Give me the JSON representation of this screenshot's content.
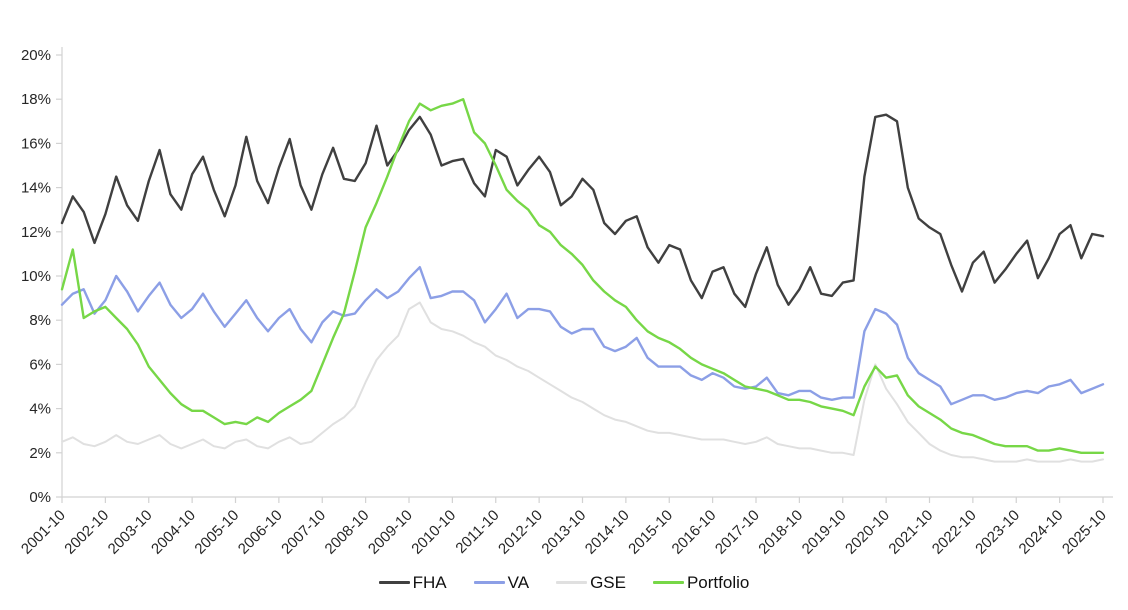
{
  "chart_data": {
    "type": "line",
    "title": "",
    "xlabel": "",
    "ylabel": "",
    "ylim": [
      0,
      20
    ],
    "y_tick_step": 2,
    "y_tick_labels": [
      "0%",
      "2%",
      "4%",
      "6%",
      "8%",
      "10%",
      "12%",
      "14%",
      "16%",
      "18%",
      "20%"
    ],
    "x_tick_labels": [
      "2001-10",
      "2002-10",
      "2003-10",
      "2004-10",
      "2005-10",
      "2006-10",
      "2007-10",
      "2008-10",
      "2009-10",
      "2010-10",
      "2011-10",
      "2012-10",
      "2013-10",
      "2014-10",
      "2015-10",
      "2016-10",
      "2017-10",
      "2018-10",
      "2019-10",
      "2020-10",
      "2021-10",
      "2022-10",
      "2023-10",
      "2024-10",
      "2025-10"
    ],
    "grid": "off",
    "legend_position": "bottom",
    "axis_color": "#d2d2d2",
    "x": [
      "2001-10",
      "2002-01",
      "2002-04",
      "2002-07",
      "2002-10",
      "2003-01",
      "2003-04",
      "2003-07",
      "2003-10",
      "2004-01",
      "2004-04",
      "2004-07",
      "2004-10",
      "2005-01",
      "2005-04",
      "2005-07",
      "2005-10",
      "2006-01",
      "2006-04",
      "2006-07",
      "2006-10",
      "2007-01",
      "2007-04",
      "2007-07",
      "2007-10",
      "2008-01",
      "2008-04",
      "2008-07",
      "2008-10",
      "2009-01",
      "2009-04",
      "2009-07",
      "2009-10",
      "2010-01",
      "2010-04",
      "2010-07",
      "2010-10",
      "2011-01",
      "2011-04",
      "2011-07",
      "2011-10",
      "2012-01",
      "2012-04",
      "2012-07",
      "2012-10",
      "2013-01",
      "2013-04",
      "2013-07",
      "2013-10",
      "2014-01",
      "2014-04",
      "2014-07",
      "2014-10",
      "2015-01",
      "2015-04",
      "2015-07",
      "2015-10",
      "2016-01",
      "2016-04",
      "2016-07",
      "2016-10",
      "2017-01",
      "2017-04",
      "2017-07",
      "2017-10",
      "2018-01",
      "2018-04",
      "2018-07",
      "2018-10",
      "2019-01",
      "2019-04",
      "2019-07",
      "2019-10",
      "2020-01",
      "2020-04",
      "2020-07",
      "2020-10",
      "2021-01",
      "2021-04",
      "2021-07",
      "2021-10",
      "2022-01",
      "2022-04",
      "2022-07",
      "2022-10",
      "2023-01",
      "2023-04",
      "2023-07",
      "2023-10",
      "2024-01",
      "2024-04",
      "2024-07",
      "2024-10",
      "2025-01",
      "2025-04",
      "2025-07",
      "2025-10"
    ],
    "series": [
      {
        "name": "FHA",
        "color": "#404040",
        "stroke_width": 2.4,
        "values": [
          12.4,
          13.6,
          12.9,
          11.5,
          12.8,
          14.5,
          13.2,
          12.5,
          14.3,
          15.7,
          13.7,
          13.0,
          14.6,
          15.4,
          13.9,
          12.7,
          14.1,
          16.3,
          14.3,
          13.3,
          14.9,
          16.2,
          14.1,
          13.0,
          14.6,
          15.8,
          14.4,
          14.3,
          15.1,
          16.8,
          15.0,
          15.7,
          16.6,
          17.2,
          16.4,
          15.0,
          15.2,
          15.3,
          14.2,
          13.6,
          15.7,
          15.4,
          14.1,
          14.8,
          15.4,
          14.7,
          13.2,
          13.6,
          14.4,
          13.9,
          12.4,
          11.9,
          12.5,
          12.7,
          11.3,
          10.6,
          11.4,
          11.2,
          9.8,
          9.0,
          10.2,
          10.4,
          9.2,
          8.6,
          10.1,
          11.3,
          9.6,
          8.7,
          9.4,
          10.4,
          9.2,
          9.1,
          9.7,
          9.8,
          14.5,
          17.2,
          17.3,
          17.0,
          14.0,
          12.6,
          12.2,
          11.9,
          10.5,
          9.3,
          10.6,
          11.1,
          9.7,
          10.3,
          11.0,
          11.6,
          9.9,
          10.8,
          11.9,
          12.3,
          10.8,
          11.9,
          11.8
        ]
      },
      {
        "name": "VA",
        "color": "#8c9fe6",
        "stroke_width": 2.4,
        "values": [
          8.7,
          9.2,
          9.4,
          8.3,
          8.9,
          10.0,
          9.3,
          8.4,
          9.1,
          9.7,
          8.7,
          8.1,
          8.5,
          9.2,
          8.4,
          7.7,
          8.3,
          8.9,
          8.1,
          7.5,
          8.1,
          8.5,
          7.6,
          7.0,
          7.9,
          8.4,
          8.2,
          8.3,
          8.9,
          9.4,
          9.0,
          9.3,
          9.9,
          10.4,
          9.0,
          9.1,
          9.3,
          9.3,
          8.9,
          7.9,
          8.5,
          9.2,
          8.1,
          8.5,
          8.5,
          8.4,
          7.7,
          7.4,
          7.6,
          7.6,
          6.8,
          6.6,
          6.8,
          7.2,
          6.3,
          5.9,
          5.9,
          5.9,
          5.5,
          5.3,
          5.6,
          5.4,
          5.0,
          4.9,
          5.0,
          5.4,
          4.7,
          4.6,
          4.8,
          4.8,
          4.5,
          4.4,
          4.5,
          4.5,
          7.5,
          8.5,
          8.3,
          7.8,
          6.3,
          5.6,
          5.3,
          5.0,
          4.2,
          4.4,
          4.6,
          4.6,
          4.4,
          4.5,
          4.7,
          4.8,
          4.7,
          5.0,
          5.1,
          5.3,
          4.7,
          4.9,
          5.1
        ]
      },
      {
        "name": "GSE",
        "color": "#e0e0e0",
        "stroke_width": 2.0,
        "values": [
          2.5,
          2.7,
          2.4,
          2.3,
          2.5,
          2.8,
          2.5,
          2.4,
          2.6,
          2.8,
          2.4,
          2.2,
          2.4,
          2.6,
          2.3,
          2.2,
          2.5,
          2.6,
          2.3,
          2.2,
          2.5,
          2.7,
          2.4,
          2.5,
          2.9,
          3.3,
          3.6,
          4.1,
          5.2,
          6.2,
          6.8,
          7.3,
          8.5,
          8.8,
          7.9,
          7.6,
          7.5,
          7.3,
          7.0,
          6.8,
          6.4,
          6.2,
          5.9,
          5.7,
          5.4,
          5.1,
          4.8,
          4.5,
          4.3,
          4.0,
          3.7,
          3.5,
          3.4,
          3.2,
          3.0,
          2.9,
          2.9,
          2.8,
          2.7,
          2.6,
          2.6,
          2.6,
          2.5,
          2.4,
          2.5,
          2.7,
          2.4,
          2.3,
          2.2,
          2.2,
          2.1,
          2.0,
          2.0,
          1.9,
          4.4,
          6.0,
          4.9,
          4.2,
          3.4,
          2.9,
          2.4,
          2.1,
          1.9,
          1.8,
          1.8,
          1.7,
          1.6,
          1.6,
          1.6,
          1.7,
          1.6,
          1.6,
          1.6,
          1.7,
          1.6,
          1.6,
          1.7
        ]
      },
      {
        "name": "Portfolio",
        "color": "#77d747",
        "stroke_width": 2.4,
        "values": [
          9.4,
          11.2,
          8.1,
          8.4,
          8.6,
          8.1,
          7.6,
          6.9,
          5.9,
          5.3,
          4.7,
          4.2,
          3.9,
          3.9,
          3.6,
          3.3,
          3.4,
          3.3,
          3.6,
          3.4,
          3.8,
          4.1,
          4.4,
          4.8,
          6.0,
          7.2,
          8.3,
          10.2,
          12.2,
          13.3,
          14.5,
          15.8,
          17.0,
          17.8,
          17.5,
          17.7,
          17.8,
          18.0,
          16.5,
          16.0,
          15.0,
          13.9,
          13.4,
          13.0,
          12.3,
          12.0,
          11.4,
          11.0,
          10.5,
          9.8,
          9.3,
          8.9,
          8.6,
          8.0,
          7.5,
          7.2,
          7.0,
          6.7,
          6.3,
          6.0,
          5.8,
          5.6,
          5.3,
          5.0,
          4.9,
          4.8,
          4.6,
          4.4,
          4.4,
          4.3,
          4.1,
          4.0,
          3.9,
          3.7,
          5.0,
          5.9,
          5.4,
          5.5,
          4.6,
          4.1,
          3.8,
          3.5,
          3.1,
          2.9,
          2.8,
          2.6,
          2.4,
          2.3,
          2.3,
          2.3,
          2.1,
          2.1,
          2.2,
          2.1,
          2.0,
          2.0,
          2.0
        ]
      }
    ]
  },
  "legend": {
    "items": [
      {
        "label": "FHA"
      },
      {
        "label": "VA"
      },
      {
        "label": "GSE"
      },
      {
        "label": "Portfolio"
      }
    ]
  }
}
